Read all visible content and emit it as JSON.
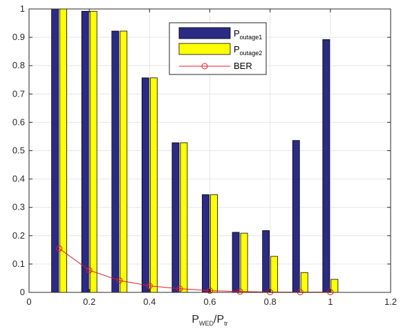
{
  "chart_data": {
    "type": "bar",
    "x": [
      0.1,
      0.2,
      0.3,
      0.4,
      0.5,
      0.6,
      0.7,
      0.8,
      0.9,
      1.0
    ],
    "series": [
      {
        "name": "P",
        "name_sub": "outage1",
        "kind": "bar",
        "color": "#2b2a84",
        "values": [
          1.0,
          0.992,
          0.922,
          0.757,
          0.528,
          0.345,
          0.212,
          0.218,
          0.536,
          0.892
        ]
      },
      {
        "name": "P",
        "name_sub": "outage2",
        "kind": "bar",
        "color": "#ffff00",
        "values": [
          1.0,
          0.992,
          0.922,
          0.757,
          0.528,
          0.345,
          0.209,
          0.127,
          0.07,
          0.046
        ]
      },
      {
        "name": "BER",
        "kind": "line",
        "color": "#e41a1c",
        "marker": "circle",
        "values": [
          0.155,
          0.078,
          0.042,
          0.023,
          0.013,
          0.006,
          0.003,
          0.001,
          0.001,
          0.001
        ]
      }
    ],
    "xlim": [
      0,
      1.2
    ],
    "ylim": [
      0,
      1
    ],
    "xticks": [
      "0",
      "0.2",
      "0.4",
      "0.6",
      "0.8",
      "1",
      "1.2"
    ],
    "yticks": [
      "0",
      "0.1",
      "0.2",
      "0.3",
      "0.4",
      "0.5",
      "0.6",
      "0.7",
      "0.8",
      "0.9",
      "1"
    ],
    "xlabel": {
      "main1": "P",
      "sub1": "WED",
      "sep": "/P",
      "sub2": "tr"
    },
    "ylabel": "",
    "grid": true,
    "legend_position": "top-center"
  }
}
